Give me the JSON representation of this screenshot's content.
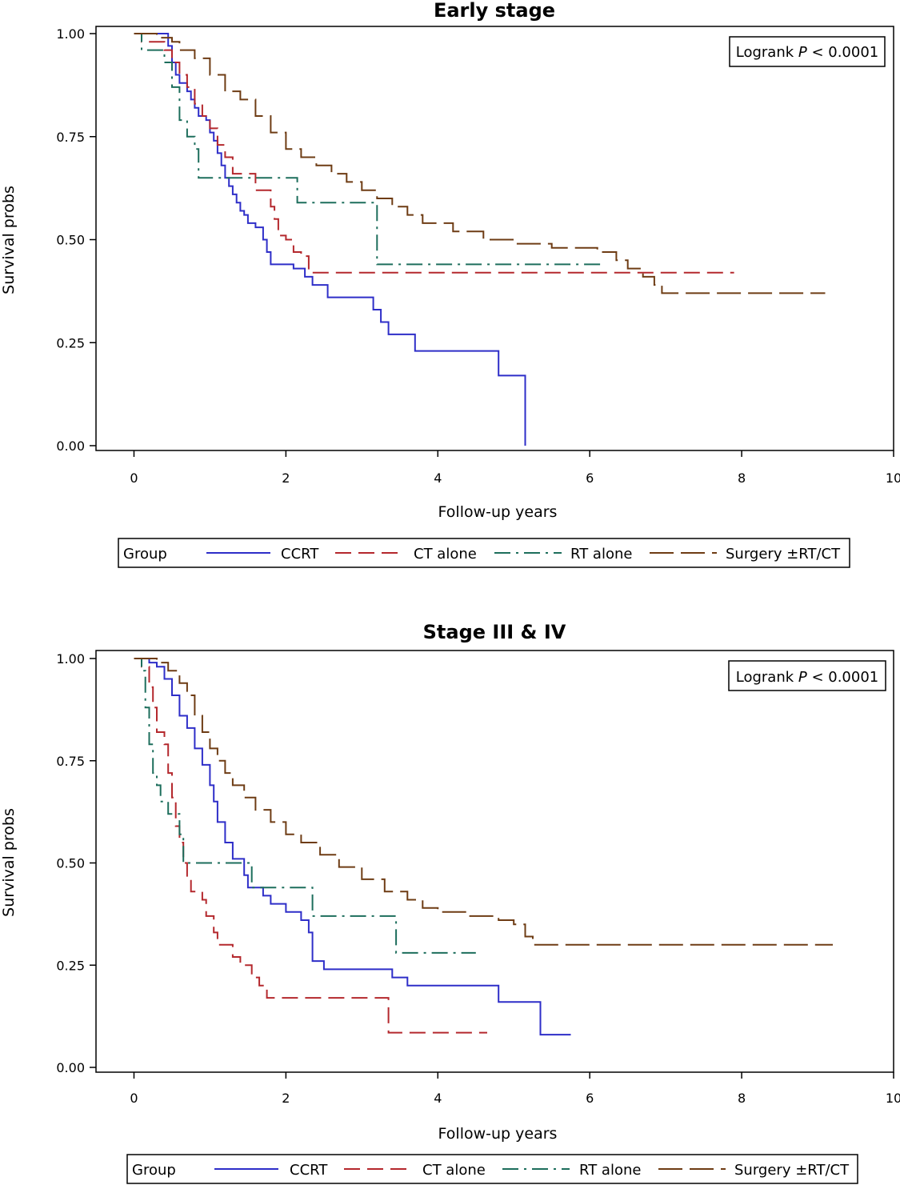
{
  "chart_data": [
    {
      "type": "line",
      "title": "Early stage",
      "xlabel": "Follow-up years",
      "ylabel": "Survival probs",
      "xlim": [
        -0.5,
        10
      ],
      "ylim": [
        0,
        1
      ],
      "xticks": [
        "0",
        "2",
        "4",
        "6",
        "8",
        "10"
      ],
      "yticks": [
        "0.00",
        "0.25",
        "0.50",
        "0.75",
        "1.00"
      ],
      "annotation": {
        "prefix": "Logrank ",
        "p": "P",
        "suffix": " < 0.0001",
        "position": "top-right"
      },
      "legend": {
        "title": "Group",
        "position": "bottom"
      },
      "series": [
        {
          "name": "CCRT",
          "color": "#2e2ec8",
          "dash": "",
          "points": [
            [
              0,
              1
            ],
            [
              0.4,
              1
            ],
            [
              0.45,
              0.97
            ],
            [
              0.5,
              0.93
            ],
            [
              0.55,
              0.9
            ],
            [
              0.6,
              0.88
            ],
            [
              0.7,
              0.86
            ],
            [
              0.75,
              0.84
            ],
            [
              0.8,
              0.82
            ],
            [
              0.85,
              0.8
            ],
            [
              0.95,
              0.79
            ],
            [
              1.0,
              0.76
            ],
            [
              1.05,
              0.74
            ],
            [
              1.1,
              0.71
            ],
            [
              1.15,
              0.68
            ],
            [
              1.2,
              0.65
            ],
            [
              1.25,
              0.63
            ],
            [
              1.3,
              0.61
            ],
            [
              1.35,
              0.59
            ],
            [
              1.4,
              0.57
            ],
            [
              1.45,
              0.56
            ],
            [
              1.5,
              0.54
            ],
            [
              1.6,
              0.53
            ],
            [
              1.7,
              0.5
            ],
            [
              1.75,
              0.47
            ],
            [
              1.8,
              0.44
            ],
            [
              2.1,
              0.43
            ],
            [
              2.25,
              0.41
            ],
            [
              2.35,
              0.39
            ],
            [
              2.55,
              0.36
            ],
            [
              3.15,
              0.33
            ],
            [
              3.25,
              0.3
            ],
            [
              3.35,
              0.27
            ],
            [
              3.7,
              0.23
            ],
            [
              4.8,
              0.17
            ],
            [
              5.15,
              0
            ]
          ]
        },
        {
          "name": "CT alone",
          "color": "#b4282d",
          "dash": "20,9",
          "points": [
            [
              0,
              1
            ],
            [
              0.1,
              0.98
            ],
            [
              0.4,
              0.96
            ],
            [
              0.5,
              0.93
            ],
            [
              0.6,
              0.9
            ],
            [
              0.7,
              0.87
            ],
            [
              0.8,
              0.83
            ],
            [
              0.9,
              0.8
            ],
            [
              1.0,
              0.77
            ],
            [
              1.1,
              0.73
            ],
            [
              1.2,
              0.7
            ],
            [
              1.3,
              0.66
            ],
            [
              1.6,
              0.62
            ],
            [
              1.8,
              0.58
            ],
            [
              1.85,
              0.55
            ],
            [
              1.9,
              0.51
            ],
            [
              2.0,
              0.5
            ],
            [
              2.1,
              0.47
            ],
            [
              2.2,
              0.46
            ],
            [
              2.3,
              0.42
            ],
            [
              7.9,
              0.42
            ]
          ]
        },
        {
          "name": "RT alone",
          "color": "#1d6e5c",
          "dash": "20,7,3,7",
          "points": [
            [
              0,
              1
            ],
            [
              0.1,
              0.96
            ],
            [
              0.4,
              0.93
            ],
            [
              0.5,
              0.87
            ],
            [
              0.6,
              0.79
            ],
            [
              0.7,
              0.75
            ],
            [
              0.8,
              0.72
            ],
            [
              0.85,
              0.65
            ],
            [
              2.15,
              0.59
            ],
            [
              3.2,
              0.44
            ],
            [
              6.2,
              0.44
            ]
          ]
        },
        {
          "name": "Surgery ±RT/CT",
          "color": "#6e3c14",
          "dash": "30,9",
          "points": [
            [
              0,
              1
            ],
            [
              0.3,
              0.99
            ],
            [
              0.5,
              0.98
            ],
            [
              0.6,
              0.96
            ],
            [
              0.8,
              0.94
            ],
            [
              1.0,
              0.9
            ],
            [
              1.2,
              0.86
            ],
            [
              1.4,
              0.84
            ],
            [
              1.6,
              0.8
            ],
            [
              1.8,
              0.76
            ],
            [
              2.0,
              0.72
            ],
            [
              2.2,
              0.7
            ],
            [
              2.4,
              0.68
            ],
            [
              2.6,
              0.66
            ],
            [
              2.8,
              0.64
            ],
            [
              3.0,
              0.62
            ],
            [
              3.2,
              0.6
            ],
            [
              3.4,
              0.58
            ],
            [
              3.6,
              0.56
            ],
            [
              3.8,
              0.54
            ],
            [
              4.2,
              0.52
            ],
            [
              4.6,
              0.5
            ],
            [
              5.0,
              0.49
            ],
            [
              5.5,
              0.48
            ],
            [
              6.1,
              0.47
            ],
            [
              6.35,
              0.45
            ],
            [
              6.5,
              0.43
            ],
            [
              6.7,
              0.41
            ],
            [
              6.85,
              0.39
            ],
            [
              6.95,
              0.37
            ],
            [
              9.1,
              0.37
            ]
          ]
        }
      ]
    },
    {
      "type": "line",
      "title": "Stage III & IV",
      "xlabel": "Follow-up years",
      "ylabel": "Survival probs",
      "xlim": [
        -0.5,
        10
      ],
      "ylim": [
        0,
        1
      ],
      "xticks": [
        "0",
        "2",
        "4",
        "6",
        "8",
        "10"
      ],
      "yticks": [
        "0.00",
        "0.25",
        "0.50",
        "0.75",
        "1.00"
      ],
      "annotation": {
        "prefix": "Logrank ",
        "p": "P",
        "suffix": " < 0.0001",
        "position": "top-right"
      },
      "legend": {
        "title": "Group",
        "position": "bottom"
      },
      "series": [
        {
          "name": "CCRT",
          "color": "#2e2ec8",
          "dash": "",
          "points": [
            [
              0,
              1
            ],
            [
              0.2,
              0.99
            ],
            [
              0.3,
              0.98
            ],
            [
              0.4,
              0.95
            ],
            [
              0.5,
              0.91
            ],
            [
              0.6,
              0.86
            ],
            [
              0.7,
              0.83
            ],
            [
              0.8,
              0.78
            ],
            [
              0.9,
              0.74
            ],
            [
              1.0,
              0.69
            ],
            [
              1.05,
              0.65
            ],
            [
              1.1,
              0.6
            ],
            [
              1.2,
              0.55
            ],
            [
              1.3,
              0.51
            ],
            [
              1.45,
              0.47
            ],
            [
              1.5,
              0.44
            ],
            [
              1.6,
              0.44
            ],
            [
              1.7,
              0.42
            ],
            [
              1.8,
              0.4
            ],
            [
              2.0,
              0.38
            ],
            [
              2.2,
              0.36
            ],
            [
              2.3,
              0.33
            ],
            [
              2.35,
              0.26
            ],
            [
              2.5,
              0.24
            ],
            [
              3.4,
              0.22
            ],
            [
              3.6,
              0.2
            ],
            [
              4.8,
              0.16
            ],
            [
              5.35,
              0.08
            ],
            [
              5.75,
              0.08
            ]
          ]
        },
        {
          "name": "CT alone",
          "color": "#b4282d",
          "dash": "20,9",
          "points": [
            [
              0,
              1
            ],
            [
              0.1,
              0.98
            ],
            [
              0.2,
              0.93
            ],
            [
              0.25,
              0.88
            ],
            [
              0.3,
              0.82
            ],
            [
              0.4,
              0.79
            ],
            [
              0.45,
              0.72
            ],
            [
              0.5,
              0.66
            ],
            [
              0.55,
              0.59
            ],
            [
              0.6,
              0.55
            ],
            [
              0.65,
              0.5
            ],
            [
              0.7,
              0.46
            ],
            [
              0.75,
              0.43
            ],
            [
              0.9,
              0.41
            ],
            [
              0.95,
              0.37
            ],
            [
              1.05,
              0.33
            ],
            [
              1.1,
              0.3
            ],
            [
              1.3,
              0.27
            ],
            [
              1.4,
              0.25
            ],
            [
              1.55,
              0.22
            ],
            [
              1.65,
              0.2
            ],
            [
              1.75,
              0.17
            ],
            [
              3.35,
              0.085
            ],
            [
              4.65,
              0.085
            ]
          ]
        },
        {
          "name": "RT alone",
          "color": "#1d6e5c",
          "dash": "20,7,3,7",
          "points": [
            [
              0,
              1
            ],
            [
              0.1,
              0.97
            ],
            [
              0.15,
              0.88
            ],
            [
              0.2,
              0.79
            ],
            [
              0.25,
              0.72
            ],
            [
              0.3,
              0.69
            ],
            [
              0.35,
              0.65
            ],
            [
              0.45,
              0.62
            ],
            [
              0.6,
              0.57
            ],
            [
              0.65,
              0.5
            ],
            [
              1.55,
              0.44
            ],
            [
              2.35,
              0.37
            ],
            [
              3.45,
              0.28
            ],
            [
              4.5,
              0.28
            ]
          ]
        },
        {
          "name": "Surgery ±RT/CT",
          "color": "#6e3c14",
          "dash": "30,9",
          "points": [
            [
              0,
              1
            ],
            [
              0.3,
              0.99
            ],
            [
              0.45,
              0.97
            ],
            [
              0.6,
              0.94
            ],
            [
              0.7,
              0.91
            ],
            [
              0.8,
              0.86
            ],
            [
              0.9,
              0.82
            ],
            [
              1.0,
              0.78
            ],
            [
              1.1,
              0.75
            ],
            [
              1.2,
              0.72
            ],
            [
              1.3,
              0.69
            ],
            [
              1.45,
              0.66
            ],
            [
              1.6,
              0.63
            ],
            [
              1.8,
              0.6
            ],
            [
              2.0,
              0.57
            ],
            [
              2.2,
              0.55
            ],
            [
              2.45,
              0.52
            ],
            [
              2.7,
              0.49
            ],
            [
              3.0,
              0.46
            ],
            [
              3.3,
              0.43
            ],
            [
              3.6,
              0.41
            ],
            [
              3.8,
              0.39
            ],
            [
              4.0,
              0.38
            ],
            [
              4.4,
              0.37
            ],
            [
              4.8,
              0.36
            ],
            [
              5.0,
              0.35
            ],
            [
              5.15,
              0.32
            ],
            [
              5.25,
              0.3
            ],
            [
              9.2,
              0.3
            ]
          ]
        }
      ]
    }
  ],
  "panels_text": [
    {
      "title": "Early stage"
    },
    {
      "title": "Stage III & IV"
    }
  ]
}
